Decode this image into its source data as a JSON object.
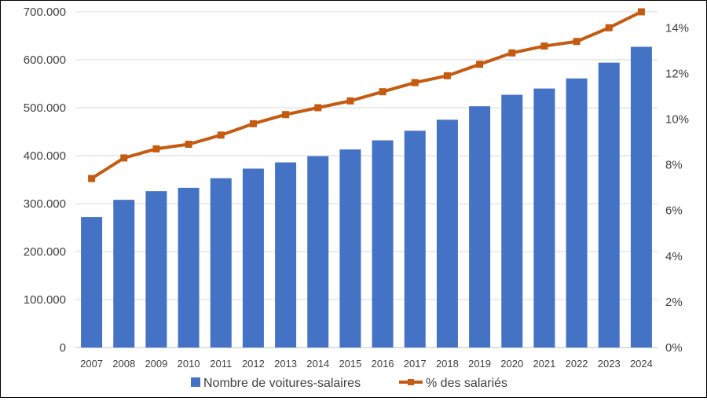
{
  "chart_data": {
    "type": "bar",
    "categories": [
      "2007",
      "2008",
      "2009",
      "2010",
      "2011",
      "2012",
      "2013",
      "2014",
      "2015",
      "2016",
      "2017",
      "2018",
      "2019",
      "2020",
      "2021",
      "2022",
      "2023",
      "2024"
    ],
    "series": [
      {
        "name": "Nombre de voitures-salaires",
        "type": "bar",
        "axis": "left",
        "color": "#4472C4",
        "values": [
          272000,
          308000,
          326000,
          333000,
          353000,
          373000,
          386000,
          399000,
          413000,
          432000,
          452000,
          475000,
          503000,
          527000,
          540000,
          561000,
          594000,
          627000
        ]
      },
      {
        "name": "% des salariés",
        "type": "line",
        "axis": "right",
        "color": "#C55A11",
        "values": [
          7.4,
          8.3,
          8.7,
          8.9,
          9.3,
          9.8,
          10.2,
          10.5,
          10.8,
          11.2,
          11.6,
          11.9,
          12.4,
          12.9,
          13.2,
          13.4,
          14.0,
          14.7
        ]
      }
    ],
    "yticks_left": [
      "0",
      "100.000",
      "200.000",
      "300.000",
      "400.000",
      "500.000",
      "600.000",
      "700.000"
    ],
    "yticks_right": [
      "0%",
      "2%",
      "4%",
      "6%",
      "8%",
      "10%",
      "12%",
      "14%"
    ],
    "ylim_left": [
      0,
      700000
    ],
    "ylim_right": [
      0,
      14.7
    ],
    "grid": true,
    "legend_position": "bottom"
  }
}
